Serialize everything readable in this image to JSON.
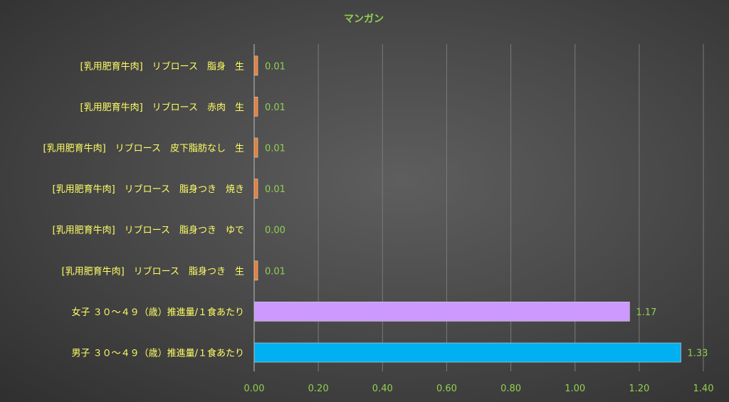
{
  "chart_data": {
    "type": "bar",
    "orientation": "horizontal",
    "title": "マンガン",
    "categories": [
      "[乳用肥育牛肉]　リブロース　脂身　生",
      "[乳用肥育牛肉]　リブロース　赤肉　生",
      "[乳用肥育牛肉]　リブロース　皮下脂肪なし　生",
      "[乳用肥育牛肉]　リブロース　脂身つき　焼き",
      "[乳用肥育牛肉]　リブロース　脂身つき　ゆで",
      "[乳用肥育牛肉]　リブロース　脂身つき　生",
      "女子 ３０～４９（歳）推進量/１食あたり",
      "男子 ３０～４９（歳）推進量/１食あたり"
    ],
    "values": [
      0.01,
      0.01,
      0.01,
      0.01,
      0.0,
      0.01,
      1.17,
      1.33
    ],
    "value_labels": [
      "0.01",
      "0.01",
      "0.01",
      "0.01",
      "0.00",
      "0.01",
      "1.17",
      "1.33"
    ],
    "bar_colors": [
      "#ed7d31",
      "#ed7d31",
      "#ed7d31",
      "#ed7d31",
      "#ed7d31",
      "#ed7d31",
      "#cc99ff",
      "#00b0f0"
    ],
    "xlim": [
      0,
      1.4
    ],
    "xticks": [
      "0.00",
      "0.20",
      "0.40",
      "0.60",
      "0.80",
      "1.00",
      "1.20",
      "1.40"
    ],
    "xtick_values": [
      0,
      0.2,
      0.4,
      0.6,
      0.8,
      1.0,
      1.2,
      1.4
    ],
    "grid": true,
    "legend": "none",
    "colors": {
      "title": "#92d050",
      "category_label": "#ffff66",
      "tick_label": "#92d050",
      "value_label": "#92d050",
      "gridline": "#7a7a7a",
      "axis": "#bfbfbf"
    }
  }
}
